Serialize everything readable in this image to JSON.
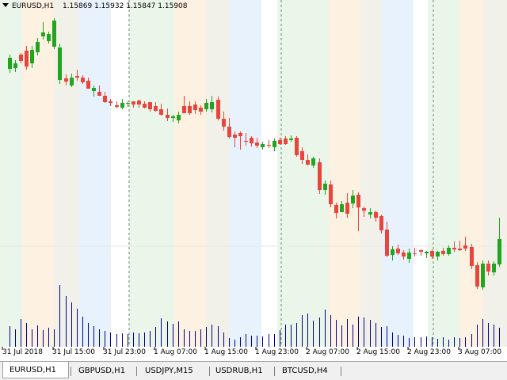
{
  "header": {
    "symbol": "EURUSD,H1",
    "open": "1.15869",
    "high": "1.15932",
    "low": "1.15847",
    "close": "1.15908"
  },
  "time_axis": {
    "labels": [
      "31 Jul 2018",
      "31 Jul 15:00",
      "31 Jul 23:00",
      "1 Aug 07:00",
      "1 Aug 15:00",
      "1 Aug 23:00",
      "2 Aug 07:00",
      "2 Aug 15:00",
      "2 Aug 23:00",
      "3 Aug 07:00"
    ]
  },
  "tabs": [
    {
      "label": "EURUSD,H1",
      "active": true
    },
    {
      "label": "GBPUSD,H1",
      "active": false
    },
    {
      "label": "USDJPY,M15",
      "active": false
    },
    {
      "label": "USDRUB,H1",
      "active": false
    },
    {
      "label": "BTCUSD,H4",
      "active": false
    }
  ],
  "colors": {
    "bull": "#1fa51f",
    "bear": "#e8453c",
    "volume": "#00008b",
    "session_asia": "#eaf6ea",
    "session_europe": "#fdf1e2",
    "session_overlap": "#f1f1ea",
    "session_america": "#e8f2fd"
  },
  "chart_data": {
    "type": "candlestick",
    "series_order": "bars oldest to newest, one bar per hour",
    "day_separators": [
      "1 Aug 00:00",
      "2 Aug 00:00",
      "3 Aug 00:00"
    ],
    "candles": [
      [
        87,
        73,
        92,
        69
      ],
      [
        86,
        80,
        91,
        76
      ],
      [
        69,
        77,
        80,
        67
      ],
      [
        64,
        84,
        88,
        58
      ],
      [
        80,
        63,
        86,
        58
      ],
      [
        66,
        53,
        70,
        48
      ],
      [
        46,
        41,
        50,
        28
      ],
      [
        52,
        43,
        55,
        40
      ],
      [
        59,
        26,
        62,
        23
      ],
      [
        101,
        60,
        106,
        55
      ],
      [
        99,
        103,
        108,
        94
      ],
      [
        108,
        98,
        110,
        93
      ],
      [
        96,
        98,
        102,
        88
      ],
      [
        98,
        104,
        106,
        95
      ],
      [
        102,
        112,
        112,
        98
      ],
      [
        115,
        111,
        122,
        108
      ],
      [
        116,
        121,
        121,
        108
      ],
      [
        121,
        129,
        130,
        116
      ],
      [
        128,
        130,
        134,
        125
      ],
      [
        133,
        135,
        137,
        128
      ],
      [
        136,
        130,
        138,
        125
      ],
      [
        131,
        130,
        135,
        128
      ],
      [
        128,
        132,
        136,
        128
      ],
      [
        127,
        132,
        136,
        126
      ],
      [
        131,
        136,
        137,
        128
      ],
      [
        129,
        138,
        141,
        129
      ],
      [
        134,
        140,
        141,
        129
      ],
      [
        138,
        145,
        146,
        131
      ],
      [
        145,
        149,
        153,
        137
      ],
      [
        149,
        147,
        154,
        145
      ],
      [
        152,
        145,
        156,
        141
      ],
      [
        134,
        143,
        143,
        121
      ],
      [
        134,
        143,
        145,
        128
      ],
      [
        132,
        139,
        144,
        128
      ],
      [
        136,
        141,
        145,
        133
      ],
      [
        138,
        130,
        141,
        125
      ],
      [
        138,
        129,
        142,
        121
      ],
      [
        126,
        150,
        152,
        122
      ],
      [
        150,
        160,
        165,
        141
      ],
      [
        160,
        173,
        175,
        149
      ],
      [
        170,
        174,
        186,
        166
      ],
      [
        168,
        172,
        189,
        166
      ],
      [
        178,
        179,
        184,
        168
      ],
      [
        174,
        181,
        185,
        172
      ],
      [
        180,
        184,
        187,
        174
      ],
      [
        186,
        182,
        189,
        179
      ],
      [
        183,
        184,
        187,
        177
      ],
      [
        186,
        178,
        191,
        175
      ],
      [
        177,
        182,
        183,
        174
      ],
      [
        175,
        182,
        183,
        172
      ],
      [
        177,
        175,
        179,
        171
      ],
      [
        174,
        196,
        198,
        172
      ],
      [
        191,
        202,
        207,
        186
      ],
      [
        202,
        208,
        209,
        195
      ],
      [
        209,
        200,
        212,
        198
      ],
      [
        205,
        240,
        245,
        200
      ],
      [
        240,
        232,
        246,
        228
      ],
      [
        233,
        258,
        262,
        228
      ],
      [
        259,
        269,
        276,
        256
      ],
      [
        268,
        258,
        268,
        254
      ],
      [
        256,
        270,
        275,
        244
      ],
      [
        257,
        247,
        263,
        240
      ],
      [
        246,
        262,
        292,
        243
      ],
      [
        263,
        266,
        274,
        261
      ],
      [
        271,
        268,
        276,
        263
      ],
      [
        268,
        275,
        280,
        266
      ],
      [
        273,
        291,
        295,
        271
      ],
      [
        290,
        323,
        325,
        280
      ],
      [
        322,
        315,
        329,
        311
      ],
      [
        314,
        320,
        322,
        309
      ],
      [
        319,
        324,
        328,
        316
      ],
      [
        327,
        319,
        332,
        314
      ],
      [
        320,
        321,
        324,
        313
      ],
      [
        316,
        318,
        323,
        315
      ],
      [
        320,
        318,
        326,
        317
      ],
      [
        317,
        324,
        327,
        315
      ],
      [
        324,
        318,
        329,
        317
      ],
      [
        317,
        321,
        323,
        313
      ],
      [
        321,
        313,
        323,
        310
      ],
      [
        313,
        315,
        318,
        305
      ],
      [
        314,
        316,
        317,
        304
      ],
      [
        310,
        314,
        317,
        299
      ],
      [
        312,
        336,
        340,
        308
      ],
      [
        335,
        362,
        365,
        331
      ],
      [
        363,
        333,
        366,
        329
      ],
      [
        333,
        343,
        348,
        329
      ],
      [
        344,
        333,
        348,
        330
      ],
      [
        334,
        302,
        337,
        275
      ]
    ],
    "volumes": [
      26,
      22,
      35,
      30,
      22,
      27,
      21,
      24,
      22,
      78,
      64,
      56,
      48,
      38,
      30,
      26,
      22,
      20,
      18,
      16,
      17,
      16,
      18,
      17,
      18,
      20,
      25,
      36,
      32,
      29,
      32,
      22,
      20,
      20,
      22,
      25,
      28,
      26,
      18,
      11,
      9,
      12,
      16,
      14,
      14,
      13,
      16,
      16,
      21,
      28,
      28,
      30,
      40,
      42,
      33,
      37,
      47,
      40,
      34,
      27,
      35,
      28,
      38,
      37,
      34,
      30,
      25,
      26,
      18,
      15,
      14,
      11,
      12,
      12,
      13,
      12,
      10,
      12,
      9,
      12,
      11,
      12,
      16,
      28,
      35,
      30,
      28,
      24
    ]
  }
}
